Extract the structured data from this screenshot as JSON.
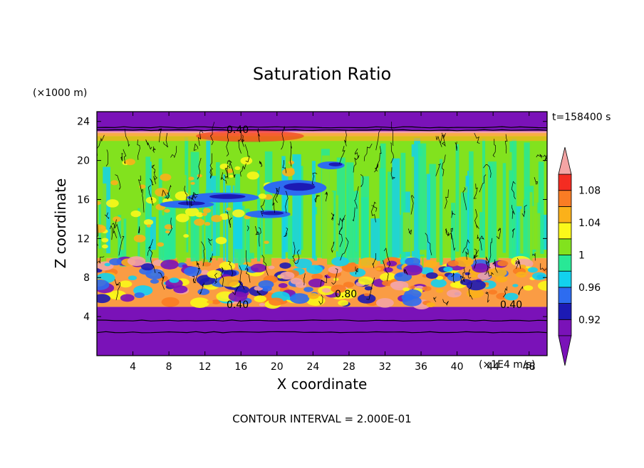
{
  "chart_data": {
    "type": "heatmap",
    "title": "Saturation Ratio",
    "xlabel": "X coordinate",
    "ylabel": "Z coordinate",
    "x_unit_label": "(×1E4 m/s)",
    "y_unit_label": "(×1000 m)",
    "time_label": "t=158400 s",
    "footer": "CONTOUR INTERVAL = 2.000E-01",
    "xlim": [
      0,
      50
    ],
    "ylim": [
      0,
      25
    ],
    "x_ticks": [
      "4",
      "8",
      "12",
      "16",
      "20",
      "24",
      "28",
      "32",
      "36",
      "40",
      "44",
      "48"
    ],
    "y_ticks": [
      "4",
      "8",
      "12",
      "16",
      "20",
      "24"
    ],
    "contour_labels": [
      "0.40",
      "0.40",
      "0.40",
      "0.80"
    ],
    "colorbar": {
      "tick_labels": [
        "0.92",
        "0.96",
        "1",
        "1.04",
        "1.08"
      ],
      "levels": [
        {
          "value": 0.92,
          "color": "#7a12b8"
        },
        {
          "value": 0.94,
          "color": "#1c1ab4"
        },
        {
          "value": 0.96,
          "color": "#2d6cf0"
        },
        {
          "value": 0.98,
          "color": "#12d2ee"
        },
        {
          "value": 1.0,
          "color": "#28e896"
        },
        {
          "value": 1.02,
          "color": "#82e21e"
        },
        {
          "value": 1.04,
          "color": "#fbf81a"
        },
        {
          "value": 1.06,
          "color": "#fbb11a"
        },
        {
          "value": 1.08,
          "color": "#fa7c24"
        },
        {
          "value": 1.1,
          "color": "#f42c22"
        }
      ],
      "under_color": "#7a12b8",
      "over_color": "#f4a4a4"
    },
    "bands": [
      {
        "z_from": 0,
        "z_to": 5,
        "value_class": "below 0.92",
        "color": "#7a12b8"
      },
      {
        "z_from": 5,
        "z_to": 10,
        "value_class": "mixed 0.92-1.10",
        "color": "#fa9c44"
      },
      {
        "z_from": 10,
        "z_to": 22.5,
        "value_class": "near 1.00",
        "color": "#82e21e"
      },
      {
        "z_from": 22.5,
        "z_to": 23,
        "value_class": "above 1.06",
        "color": "#f4a4a4"
      },
      {
        "z_from": 23,
        "z_to": 25,
        "value_class": "below 0.92",
        "color": "#7a12b8"
      }
    ],
    "grid": false
  }
}
